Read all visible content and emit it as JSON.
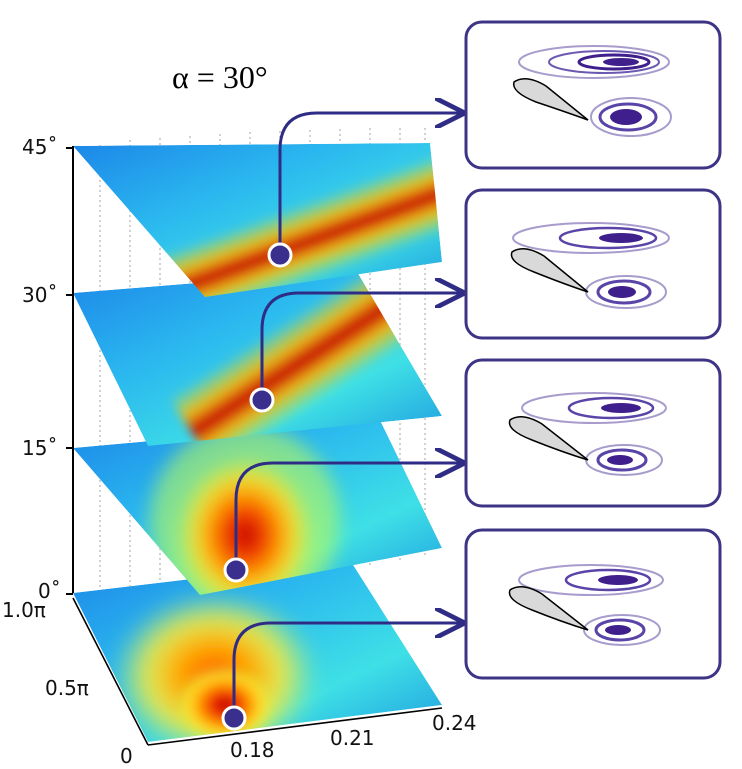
{
  "figure": {
    "title": "α = 30°",
    "y_axis_ticks": [
      "45˚",
      "30˚",
      "15˚",
      "0˚"
    ],
    "depth_axis_ticks": [
      "1.0π",
      "0.5π",
      "0"
    ],
    "x_axis_ticks": [
      "0.18",
      "0.21",
      "0.24"
    ]
  },
  "colors": {
    "connector": "#2f2c86",
    "marker_fill": "#3a2f8c",
    "marker_stroke": "#ffffff",
    "panel_border": "#3d3485",
    "contour_dark": "#3f1f8c",
    "contour_light": "#a89ccd",
    "airfoil_fill": "#d9d9d9"
  },
  "layers": [
    {
      "name": "layer-45",
      "hot_spot": "band"
    },
    {
      "name": "layer-30",
      "hot_spot": "band"
    },
    {
      "name": "layer-15",
      "hot_spot": "blob"
    },
    {
      "name": "layer-0",
      "hot_spot": "blob"
    }
  ],
  "panels": [
    {
      "name": "vorticity-panel-1",
      "icon": "airfoil-vortex-contour"
    },
    {
      "name": "vorticity-panel-2",
      "icon": "airfoil-vortex-contour"
    },
    {
      "name": "vorticity-panel-3",
      "icon": "airfoil-vortex-contour"
    },
    {
      "name": "vorticity-panel-4",
      "icon": "airfoil-vortex-contour"
    }
  ]
}
